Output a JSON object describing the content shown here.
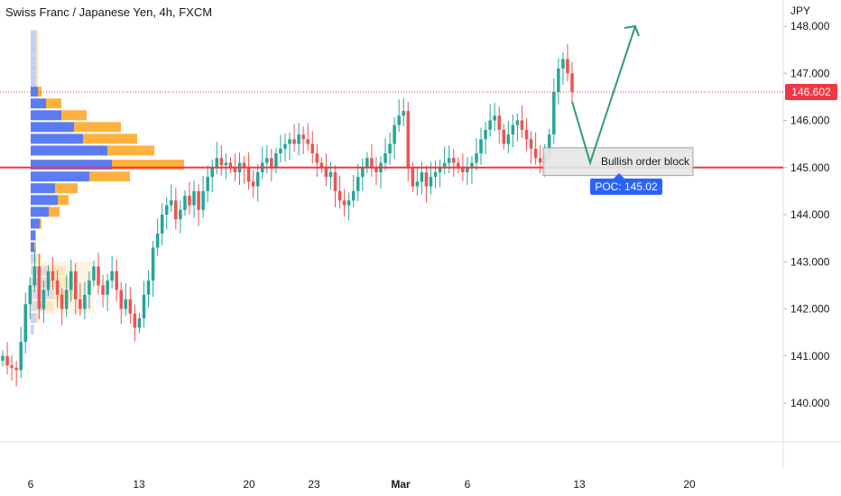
{
  "header": {
    "title": "Swiss Franc / Japanese Yen, 4h, FXCM",
    "currency": "JPY"
  },
  "colors": {
    "up": "#26a69a",
    "down": "#ef5350",
    "hline": "#f23645",
    "arrow": "#2e9e6b",
    "poc_label_bg": "#2962ff",
    "price_label_bg": "#f23645",
    "vp_up": "#5b7cf5",
    "vp_down": "#ffb13d"
  },
  "chart_data": {
    "type": "candlestick",
    "ylim": [
      139.2,
      148.3
    ],
    "y_ticks": [
      "148.000",
      "147.000",
      "146.000",
      "145.000",
      "144.000",
      "143.000",
      "142.000",
      "141.000",
      "140.000"
    ],
    "x_ticks": [
      "6",
      "13",
      "20",
      "23",
      "Mar",
      "6",
      "13",
      "20"
    ],
    "last_price": "146.602",
    "poc_label": "POC: 145.02",
    "horizontal_level": 145.0,
    "order_block": {
      "label": "Bullish order block",
      "low": 144.83,
      "high": 145.42
    },
    "projected_path": [
      146.4,
      145.1,
      148.0
    ],
    "closes": [
      141.0,
      140.8,
      140.75,
      140.7,
      141.3,
      142.1,
      142.5,
      142.9,
      142.0,
      142.4,
      142.8,
      142.6,
      142.3,
      142.0,
      142.4,
      142.8,
      142.2,
      142.0,
      142.3,
      142.6,
      142.9,
      142.5,
      142.3,
      142.6,
      142.8,
      142.4,
      142.0,
      142.2,
      141.9,
      141.6,
      141.8,
      142.3,
      142.6,
      143.3,
      143.6,
      144.0,
      144.2,
      144.3,
      143.9,
      144.1,
      144.4,
      144.2,
      144.5,
      144.1,
      144.5,
      144.8,
      145.0,
      145.2,
      145.05,
      145.1,
      145.0,
      144.9,
      145.1,
      145.0,
      144.7,
      144.6,
      144.9,
      145.1,
      145.2,
      145.0,
      145.3,
      145.4,
      145.5,
      145.6,
      145.5,
      145.7,
      145.6,
      145.5,
      145.3,
      145.1,
      145.0,
      144.8,
      144.9,
      144.5,
      144.3,
      144.2,
      144.3,
      144.5,
      144.8,
      145.0,
      145.2,
      145.0,
      144.9,
      145.1,
      145.3,
      145.5,
      145.9,
      146.1,
      146.2,
      145.0,
      144.6,
      144.7,
      144.9,
      144.6,
      144.8,
      144.9,
      145.0,
      145.1,
      145.2,
      145.1,
      145.0,
      144.9,
      145.0,
      145.1,
      145.3,
      145.6,
      145.8,
      146.0,
      146.1,
      145.8,
      145.5,
      145.7,
      145.9,
      146.0,
      145.8,
      145.6,
      145.4,
      145.2,
      145.1,
      145.3,
      145.7,
      146.6,
      147.1,
      147.3,
      147.0,
      146.6
    ],
    "volume_profile": [
      {
        "price": 147.8,
        "up": 0.06,
        "down": 0.02
      },
      {
        "price": 147.6,
        "up": 0.06,
        "down": 0.02
      },
      {
        "price": 147.4,
        "up": 0.06,
        "down": 0.02
      },
      {
        "price": 147.2,
        "up": 0.06,
        "down": 0.02
      },
      {
        "price": 147.0,
        "up": 0.06,
        "down": 0.02
      },
      {
        "price": 146.8,
        "up": 0.06,
        "down": 0.02
      },
      {
        "price": 146.6,
        "up": 0.08,
        "down": 0.04
      },
      {
        "price": 146.35,
        "up": 0.17,
        "down": 0.17
      },
      {
        "price": 146.1,
        "up": 0.34,
        "down": 0.28
      },
      {
        "price": 145.85,
        "up": 0.48,
        "down": 0.52
      },
      {
        "price": 145.6,
        "up": 0.58,
        "down": 0.6
      },
      {
        "price": 145.35,
        "up": 0.85,
        "down": 0.52
      },
      {
        "price": 145.05,
        "up": 0.9,
        "down": 0.8
      },
      {
        "price": 144.8,
        "up": 0.65,
        "down": 0.45
      },
      {
        "price": 144.55,
        "up": 0.27,
        "down": 0.25
      },
      {
        "price": 144.3,
        "up": 0.3,
        "down": 0.12
      },
      {
        "price": 144.05,
        "up": 0.2,
        "down": 0.12
      },
      {
        "price": 143.8,
        "up": 0.1,
        "down": 0.02
      },
      {
        "price": 143.55,
        "up": 0.05,
        "down": 0.01
      },
      {
        "price": 143.3,
        "up": 0.04,
        "down": 0.02
      },
      {
        "price": 143.05,
        "up": 0.06,
        "down": 0.06
      },
      {
        "price": 142.8,
        "up": 0.18,
        "down": 0.2
      },
      {
        "price": 142.55,
        "up": 0.22,
        "down": 0.28
      },
      {
        "price": 142.3,
        "up": 0.25,
        "down": 0.25
      },
      {
        "price": 142.05,
        "up": 0.15,
        "down": 0.1
      },
      {
        "price": 141.8,
        "up": 0.06,
        "down": 0.03
      },
      {
        "price": 141.55,
        "up": 0.03,
        "down": 0.01
      }
    ]
  }
}
